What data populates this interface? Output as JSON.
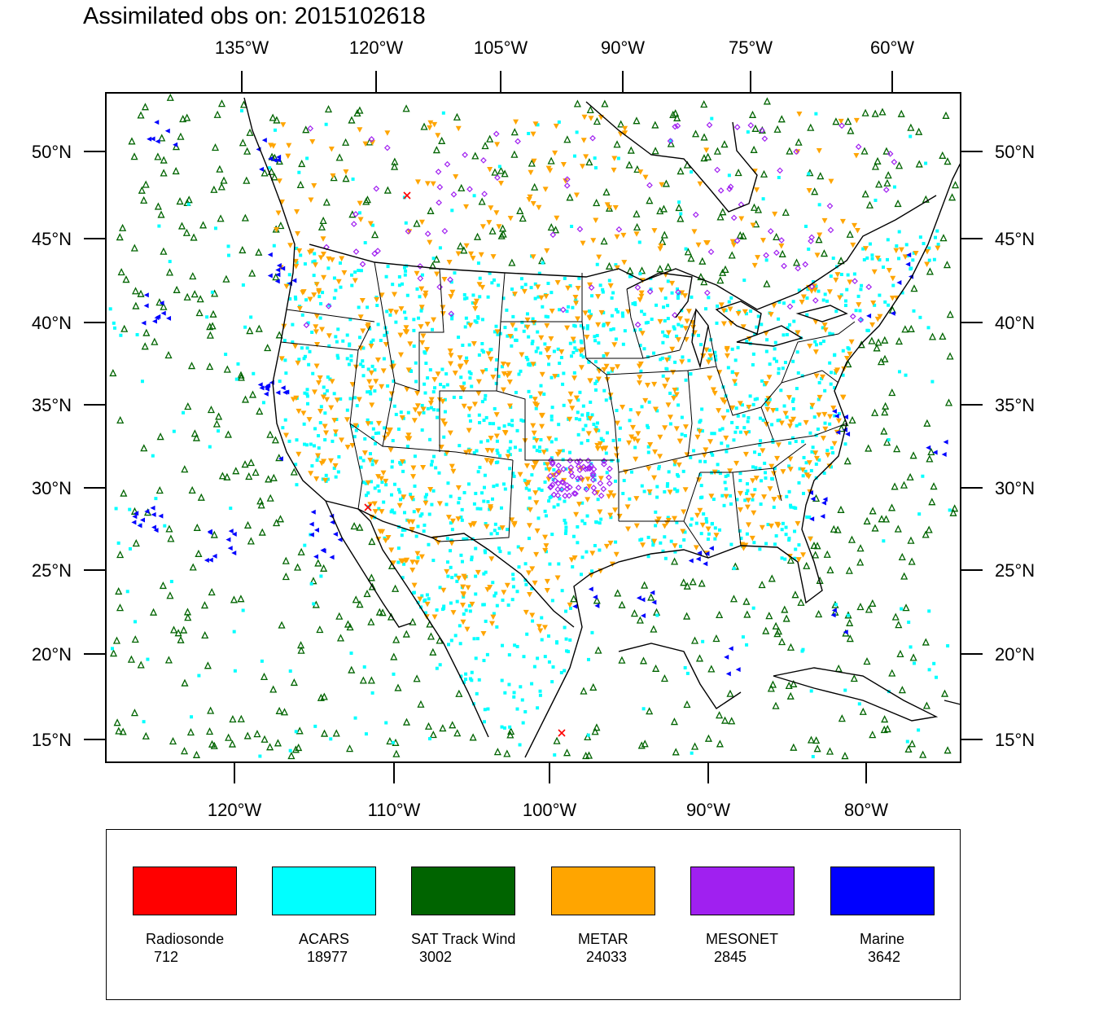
{
  "title": "Assimilated obs on: 2015102618",
  "map": {
    "top_lon_labels": [
      "135°W",
      "120°W",
      "105°W",
      "90°W",
      "75°W",
      "60°W"
    ],
    "bottom_lon_labels": [
      "120°W",
      "110°W",
      "100°W",
      "90°W",
      "80°W"
    ],
    "left_lat_labels": [
      "50°N",
      "45°N",
      "40°N",
      "35°N",
      "30°N",
      "25°N",
      "20°N",
      "15°N"
    ],
    "right_lat_labels": [
      "50°N",
      "45°N",
      "40°N",
      "35°N",
      "30°N",
      "25°N",
      "20°N",
      "15°N"
    ],
    "lat_range": [
      13.7,
      54.5
    ],
    "lon_range": [
      -128,
      -74.5
    ],
    "basemap": "coastlines, country and US state boundaries (Lambert projection)"
  },
  "legend": {
    "items": [
      {
        "name": "Radiosonde",
        "count": "712",
        "color": "#ff0000",
        "marker": "x-cross"
      },
      {
        "name": "ACARS",
        "count": "18977",
        "color": "#00ffff",
        "marker": "filled-square"
      },
      {
        "name": "SAT Track Wind",
        "count": "3002",
        "color": "#006400",
        "marker": "hollow-triangle"
      },
      {
        "name": "METAR",
        "count": "24033",
        "color": "#ffa500",
        "marker": "down-triangle"
      },
      {
        "name": "MESONET",
        "count": "2845",
        "color": "#a020f0",
        "marker": "hollow-diamond"
      },
      {
        "name": "Marine",
        "count": "3642",
        "color": "#0000ff",
        "marker": "left-triangle"
      }
    ]
  }
}
